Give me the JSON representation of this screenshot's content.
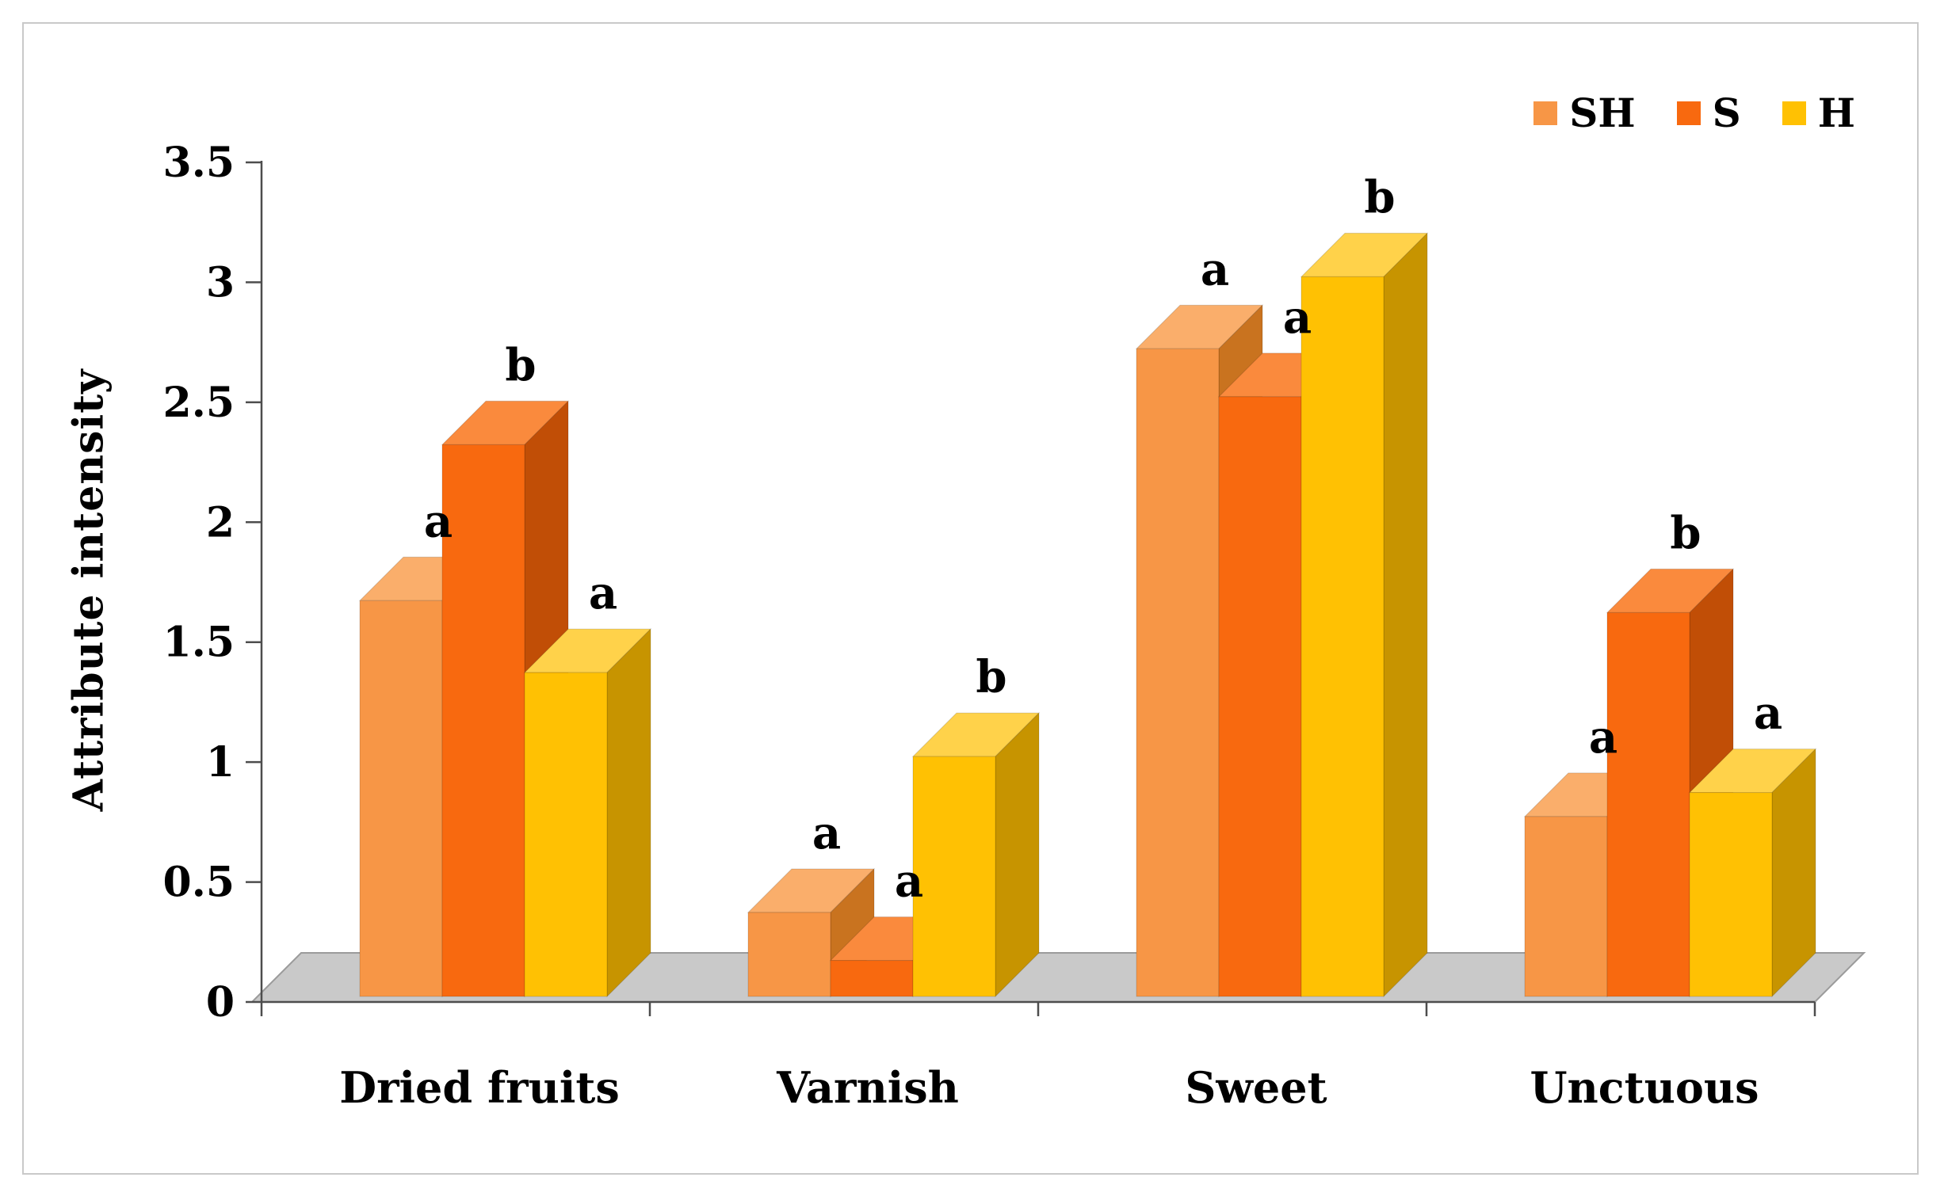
{
  "figure": {
    "background": "#FFFFFF",
    "border_color": "#C9C9C9"
  },
  "chart_data": {
    "type": "bar",
    "style": "3d-column",
    "title": "",
    "xlabel": "",
    "ylabel": "Attribute intensity",
    "ylim": [
      0,
      3.5
    ],
    "ytick_step": 0.5,
    "yticks": [
      0,
      0.5,
      1,
      1.5,
      2,
      2.5,
      3,
      3.5
    ],
    "grid": false,
    "legend_position": "top-right",
    "floor_color": "#C9C9C9",
    "axis_color": "#4d4d4d",
    "categories": [
      "Dried fruits",
      "Varnish",
      "Sweet",
      "Unctuous"
    ],
    "series": [
      {
        "name": "SH",
        "color": "#F79646",
        "color_top": "#FAAE6B",
        "color_side": "#C9731F",
        "values": [
          1.65,
          0.35,
          2.7,
          0.75
        ],
        "sig_letters": [
          "a",
          "a",
          "a",
          "a"
        ]
      },
      {
        "name": "S",
        "color": "#F8690F",
        "color_top": "#FA8A3D",
        "color_side": "#C14E06",
        "values": [
          2.3,
          0.15,
          2.5,
          1.6
        ],
        "sig_letters": [
          "b",
          "a",
          "a",
          "b"
        ]
      },
      {
        "name": "H",
        "color": "#FFC103",
        "color_top": "#FFD24A",
        "color_side": "#C79400",
        "values": [
          1.35,
          1.0,
          3.0,
          0.85
        ],
        "sig_letters": [
          "a",
          "b",
          "b",
          "a"
        ]
      }
    ]
  }
}
